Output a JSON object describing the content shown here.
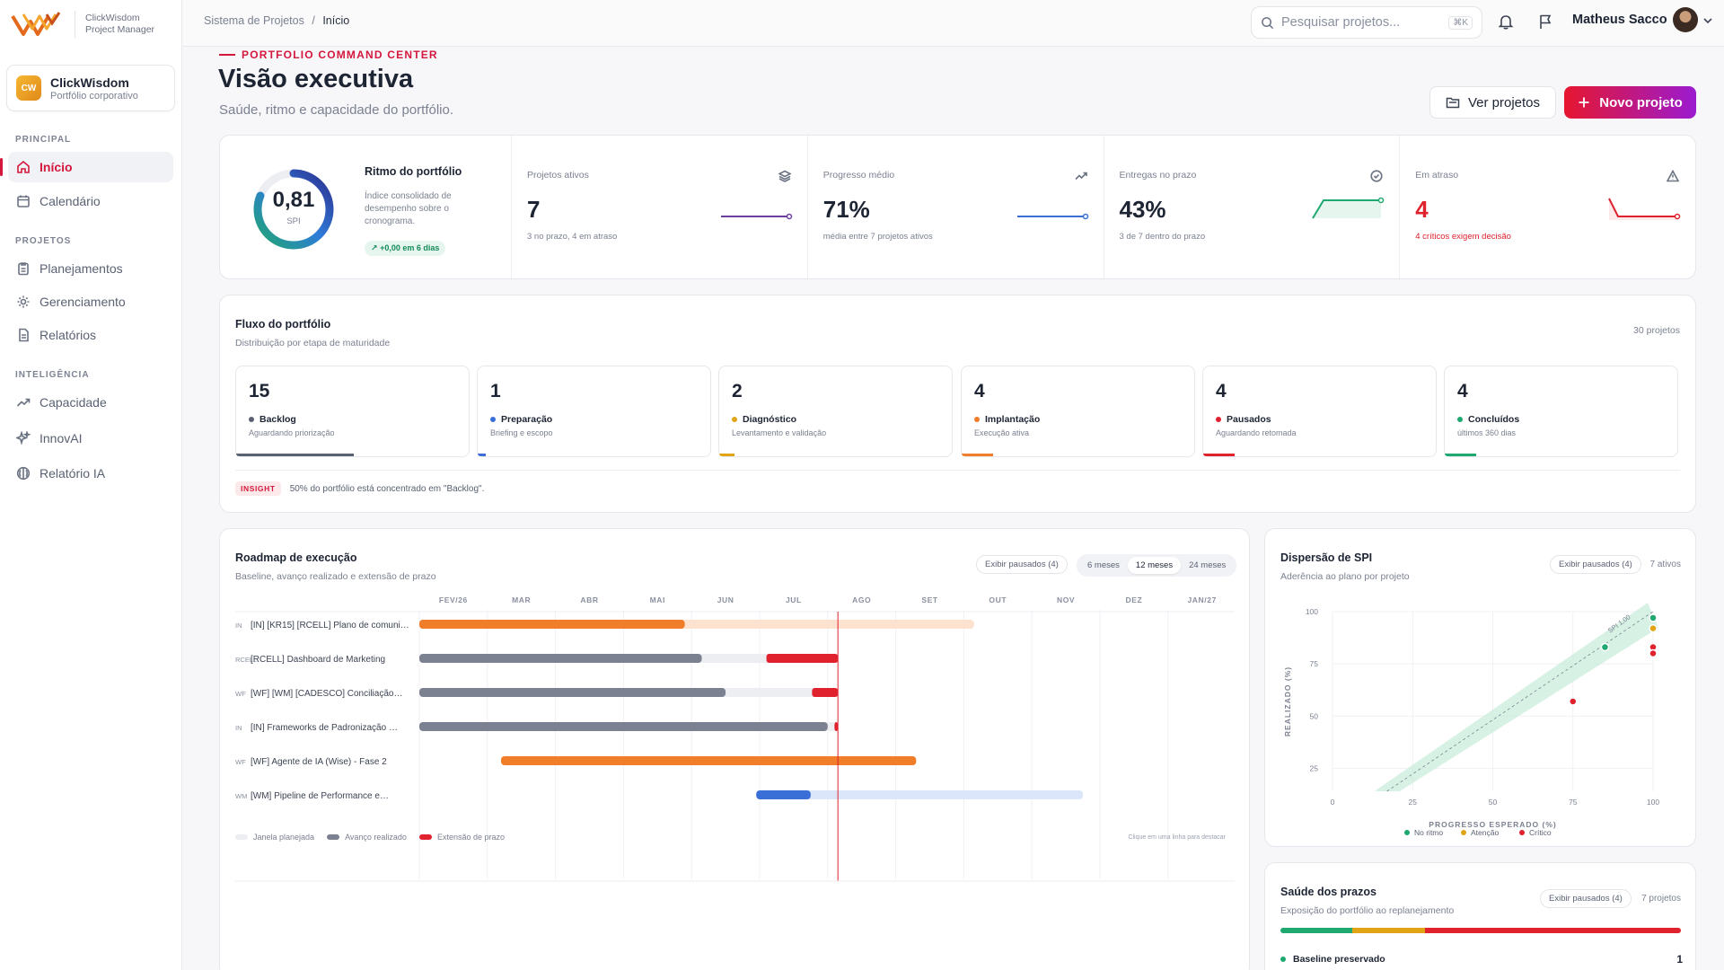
{
  "brand": {
    "line1": "ClickWisdom",
    "line2": "Project Manager"
  },
  "org": {
    "initials": "CW",
    "name": "ClickWisdom",
    "sub": "Portfólio corporativo"
  },
  "nav": {
    "principal": "PRINCIPAL",
    "projetos": "PROJETOS",
    "inteligencia": "INTELIGÊNCIA",
    "items": [
      "Início",
      "Calendário",
      "Planejamentos",
      "Gerenciamento",
      "Relatórios",
      "Capacidade",
      "InnovAI",
      "Relatório IA"
    ]
  },
  "breadcrumb": {
    "root": "Sistema de Projetos",
    "sep": "/",
    "current": "Início"
  },
  "search": {
    "placeholder": "Pesquisar projetos...",
    "shortcut": "⌘K"
  },
  "user": {
    "name": "Matheus Sacco"
  },
  "header": {
    "kicker": "PORTFOLIO COMMAND CENTER",
    "title": "Visão executiva",
    "subtitle": "Saúde, ritmo e capacidade do portfólio.",
    "btn_view": "Ver projetos",
    "btn_new": "Novo projeto"
  },
  "spi": {
    "value": "0,81",
    "unit": "SPI",
    "fraction": 0.81,
    "title": "Ritmo do portfólio",
    "desc": "Índice consolidado de desempenho sobre o cronograma.",
    "delta": "+0,00 em 6 dias"
  },
  "kpis": [
    {
      "label": "Projetos ativos",
      "value": "7",
      "sub": "3 no prazo, 4 em atraso",
      "color": "#6b3fa0",
      "icon": "layers-icon"
    },
    {
      "label": "Progresso médio",
      "value": "71%",
      "sub": "média entre 7 projetos ativos",
      "color": "#3a6fd8",
      "icon": "trend-up-icon"
    },
    {
      "label": "Entregas no prazo",
      "value": "43%",
      "sub": "3 de 7 dentro do prazo",
      "color": "#1fa870",
      "icon": "check-circle-icon"
    },
    {
      "label": "Em atraso",
      "value": "4",
      "sub": "4 críticos exigem decisão",
      "color": "#e0212e",
      "icon": "alert-triangle-icon"
    }
  ],
  "flow": {
    "title": "Fluxo do portfólio",
    "subtitle": "Distribuição por etapa de maturidade",
    "total": "30 projetos",
    "stages": [
      {
        "count": "15",
        "name": "Backlog",
        "desc": "Aguardando priorização",
        "color": "#5a6172",
        "share": 0.5
      },
      {
        "count": "1",
        "name": "Preparação",
        "desc": "Briefing e escopo",
        "color": "#3a6fd8",
        "share": 0.033
      },
      {
        "count": "2",
        "name": "Diagnóstico",
        "desc": "Levantamento e validação",
        "color": "#e0a416",
        "share": 0.067
      },
      {
        "count": "4",
        "name": "Implantação",
        "desc": "Execução ativa",
        "color": "#f07d2a",
        "share": 0.133
      },
      {
        "count": "4",
        "name": "Pausados",
        "desc": "Aguardando retomada",
        "color": "#e0212e",
        "share": 0.133
      },
      {
        "count": "4",
        "name": "Concluídos",
        "desc": "últimos 360 dias",
        "color": "#1fa870",
        "share": 0.133
      }
    ],
    "insight_tag": "INSIGHT",
    "insight_text": "50% do portfólio está concentrado em \"Backlog\"."
  },
  "roadmap": {
    "title": "Roadmap de execução",
    "subtitle": "Baseline, avanço realizado e extensão de prazo",
    "paused_btn": "Exibir pausados (4)",
    "ranges": [
      "6 meses",
      "12 meses",
      "24 meses"
    ],
    "months": [
      "FEV/26",
      "MAR",
      "ABR",
      "MAI",
      "JUN",
      "JUL",
      "AGO",
      "SET",
      "OUT",
      "NOV",
      "DEZ",
      "JAN/27"
    ],
    "rows": [
      {
        "tag": "IN",
        "label": "[IN] [KR15] [RCELL] Plano de comuni…",
        "start": 0,
        "end": 8.15,
        "done": 3.9,
        "ext": 0,
        "color": "#f07d2a",
        "light": "#fde2cf"
      },
      {
        "tag": "RCELL",
        "label": "[RCELL] Dashboard de Marketing",
        "start": 0,
        "end": 6.15,
        "done": 4.15,
        "ext": 1.05,
        "color": "#7b8191",
        "light": "#eceef2"
      },
      {
        "tag": "WF",
        "label": "[WF] [WM] [CADESCO] Conciliação…",
        "start": 0,
        "end": 6.15,
        "done": 4.5,
        "ext": 0.38,
        "color": "#7b8191",
        "light": "#eceef2"
      },
      {
        "tag": "IN",
        "label": "[IN] Frameworks de Padronização …",
        "start": 0,
        "end": 6.15,
        "done": 6.0,
        "ext": 0.05,
        "color": "#7b8191",
        "light": "#eceef2"
      },
      {
        "tag": "WF",
        "label": "[WF] Agente de IA (Wise) - Fase 2",
        "start": 1.2,
        "end": 7.1,
        "done": 6.1,
        "ext": 0,
        "color": "#f07d2a",
        "light": "#fde2cf"
      },
      {
        "tag": "WM",
        "label": "[WM] Pipeline de Performance e…",
        "start": 4.95,
        "end": 9.75,
        "done": 0.8,
        "ext": 0,
        "color": "#3a6fd8",
        "light": "#dce6fa"
      }
    ],
    "today": 6.15,
    "legend": [
      "Janela planejada",
      "Avanço realizado",
      "Extensão de prazo"
    ],
    "hint": "Clique em uma linha para destacar"
  },
  "scatter": {
    "title": "Dispersão de SPI",
    "subtitle": "Aderência ao plano por projeto",
    "paused_btn": "Exibir pausados (4)",
    "count": "7 ativos",
    "band_label": "SPI 1,00",
    "xlabel": "PROGRESSO ESPERADO (%)",
    "ylabel": "REALIZADO (%)",
    "ticks": [
      "0",
      "25",
      "50",
      "75",
      "100"
    ],
    "yticks": [
      "25",
      "50",
      "75",
      "100"
    ],
    "points": [
      {
        "x": 100,
        "y": 97,
        "status": "ok"
      },
      {
        "x": 85,
        "y": 83,
        "status": "ok"
      },
      {
        "x": 100,
        "y": 92,
        "status": "warn"
      },
      {
        "x": 100,
        "y": 83,
        "status": "crit"
      },
      {
        "x": 100,
        "y": 80,
        "status": "crit"
      },
      {
        "x": 75,
        "y": 57,
        "status": "crit"
      }
    ],
    "legend": [
      "No ritmo",
      "Atenção",
      "Crítico"
    ],
    "colors": {
      "ok": "#1fa870",
      "warn": "#e0a416",
      "crit": "#e0212e"
    }
  },
  "deadlines": {
    "title": "Saúde dos prazos",
    "subtitle": "Exposição do portfólio ao replanejamento",
    "paused_btn": "Exibir pausados (4)",
    "count": "7 projetos",
    "bar": [
      {
        "share": 0.18,
        "color": "#1fa870"
      },
      {
        "share": 0.18,
        "color": "#e0a416"
      },
      {
        "share": 0.64,
        "color": "#e0212e"
      }
    ],
    "first_item": "Baseline preservado",
    "first_count": "1"
  }
}
